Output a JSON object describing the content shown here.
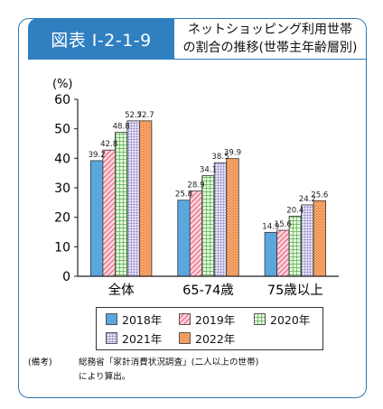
{
  "figure": {
    "label": "図表 I-2-1-9",
    "title_line1": "ネットショッピング利用世帯",
    "title_line2": "の割合の推移(世帯主年齢層別)"
  },
  "chart_data": {
    "type": "bar",
    "unit_label": "(%)",
    "categories": [
      "全体",
      "65-74歳",
      "75歳以上"
    ],
    "series": [
      {
        "name": "2018年",
        "values": [
          39.2,
          25.8,
          14.9
        ],
        "color": "#5ba7dd",
        "pattern": "solid"
      },
      {
        "name": "2019年",
        "values": [
          42.8,
          28.9,
          15.6
        ],
        "color": "#f05a78",
        "pattern": "diag-red"
      },
      {
        "name": "2020年",
        "values": [
          48.8,
          34.1,
          20.4
        ],
        "color": "#52b848",
        "pattern": "grid-green"
      },
      {
        "name": "2021年",
        "values": [
          52.7,
          38.5,
          24.2
        ],
        "color": "#9b92d0",
        "pattern": "dots-purple"
      },
      {
        "name": "2022年",
        "values": [
          52.7,
          39.9,
          25.6
        ],
        "color": "#f2833a",
        "pattern": "hatch-orange"
      }
    ],
    "ylim": [
      0,
      60
    ],
    "yticks": [
      0,
      10,
      20,
      30,
      40,
      50,
      60
    ],
    "legend_position": "bottom"
  },
  "legend": {
    "items": [
      "2018年",
      "2019年",
      "2020年",
      "2021年",
      "2022年"
    ]
  },
  "note": {
    "label": "(備考)",
    "line1": "総務省「家計消費状況調査」(二人以上の世帯)",
    "line2": "により算出。"
  }
}
